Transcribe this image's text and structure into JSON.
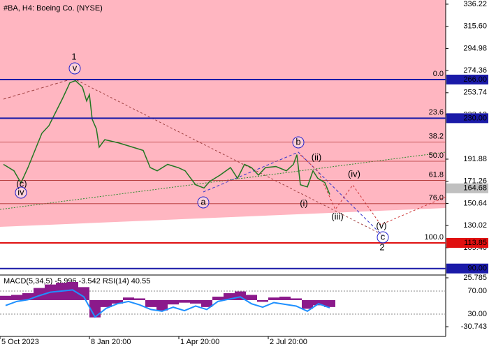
{
  "chart_data": [
    {
      "type": "line",
      "title": "#BA, H4:  Boeing Co. (NYSE)",
      "x": [
        1.25,
        5,
        7.5,
        10,
        12.5,
        15,
        17.5,
        20,
        22.5,
        25,
        27,
        29.5,
        31,
        32,
        33,
        34.5,
        35.5,
        37.5,
        42.5,
        47.5,
        51.25,
        53.75,
        56.25,
        60,
        63.75,
        66.25,
        70,
        73,
        75,
        78.75,
        82.5,
        85,
        87.5,
        90,
        92.5,
        95,
        98.75,
        102.5,
        105,
        106.25,
        107.5,
        110,
        112,
        113.75,
        116.25,
        118
      ],
      "values": [
        187,
        181,
        169.7,
        184,
        200,
        216,
        223,
        236,
        249,
        263,
        265,
        259,
        246,
        252,
        229,
        220,
        203,
        210,
        207,
        203,
        200,
        184,
        181,
        187,
        184,
        181,
        168,
        165,
        171,
        177,
        184,
        174,
        187,
        184,
        177,
        184,
        185,
        181,
        187,
        196,
        168,
        166,
        181,
        174,
        170,
        159
      ],
      "color": "#227722",
      "xlim": [
        0,
        159.5
      ],
      "xticks": [
        {
          "value": 0,
          "label": "5 Oct 2023"
        },
        {
          "value": 32,
          "label": "8 Jan 20:00"
        },
        {
          "value": 64,
          "label": "1 Apr 20:00"
        },
        {
          "value": 96,
          "label": "2 Jul 20:00"
        }
      ],
      "ylim": [
        84.6,
        340.1
      ],
      "yticks": [
        336.22,
        {
          "value": 315.6,
          "label": "315.60"
        },
        294.98,
        274.36,
        253.74,
        233.12,
        191.88,
        171.26,
        150.64,
        130.02,
        {
          "value": 109.4,
          "label": "109.40"
        }
      ],
      "levels": [
        {
          "value": 266,
          "label": "266.00",
          "color": "#1a1aa8"
        },
        {
          "value": 230,
          "label": "230.00",
          "color": "#1a1aa8"
        },
        {
          "value": 113.85,
          "label": "113.85",
          "color": "#e01010"
        },
        {
          "value": 90,
          "label": "90.00",
          "color": "#1a1aa8"
        }
      ],
      "current_price": 164.68,
      "fibonacci": [
        {
          "value": 266,
          "label": "0.0"
        },
        {
          "value": 230.1,
          "label": "23.6"
        },
        {
          "value": 207.9,
          "label": "38.2"
        },
        {
          "value": 189.9,
          "label": "50.0"
        },
        {
          "value": 172,
          "label": "61.8"
        },
        {
          "value": 150.4,
          "label": "76.0"
        },
        {
          "value": 113.85,
          "label": "100.0"
        }
      ],
      "annotations": [
        {
          "text": "1",
          "style": "plain",
          "color": "#cc2222"
        },
        {
          "text": "v",
          "style": "circle",
          "color": "#2222cc"
        },
        {
          "text": "(c)",
          "style": "plain",
          "color": "#cc2222"
        },
        {
          "text": "iv",
          "style": "circle",
          "color": "#2222cc"
        },
        {
          "text": "a",
          "style": "circle",
          "color": "#2222cc"
        },
        {
          "text": "b",
          "style": "circle",
          "color": "#2222cc"
        },
        {
          "text": "(ii)",
          "style": "plain",
          "color": "#cc2222"
        },
        {
          "text": "(i)",
          "style": "plain",
          "color": "#cc2222"
        },
        {
          "text": "(iii)",
          "style": "plain",
          "color": "#cc2222"
        },
        {
          "text": "(iv)",
          "style": "plain",
          "color": "#cc2222"
        },
        {
          "text": "(v)",
          "style": "plain",
          "color": "#cc2222"
        },
        {
          "text": "c",
          "style": "circle",
          "color": "#2222cc"
        },
        {
          "text": "2",
          "style": "plain",
          "color": "#cc2222"
        }
      ]
    },
    {
      "type": "indicator",
      "title": "MACD(5,34,5) -5.996 -3.542 RSI(14) 40.55",
      "x": [
        2,
        6,
        10,
        14,
        18,
        22,
        26,
        30,
        34,
        38,
        42,
        46,
        50,
        54,
        58,
        62,
        66,
        70,
        74,
        78,
        82,
        86,
        90,
        94,
        98,
        102,
        106,
        110,
        114,
        118
      ],
      "series": [
        {
          "type": "bar",
          "color": "#8b1a8b",
          "values": [
            5,
            6,
            8,
            14,
            18,
            20,
            21,
            15,
            -20,
            -8,
            -4,
            3,
            2,
            -8,
            -12,
            -5,
            -3,
            -4,
            -8,
            4,
            8,
            10,
            6,
            -2,
            3,
            4,
            2,
            -10,
            -6,
            -8
          ]
        },
        {
          "type": "line",
          "axis": "y2",
          "color": "#1e90ff",
          "values": [
            45,
            52,
            55,
            62,
            68,
            70,
            72,
            60,
            25,
            40,
            48,
            52,
            46,
            38,
            35,
            42,
            36,
            44,
            38,
            52,
            56,
            60,
            48,
            42,
            50,
            47,
            44,
            35,
            48,
            41
          ]
        }
      ],
      "ylim": [
        -42,
        28.2
      ],
      "yticks": [
        25.785,
        -30.743
      ],
      "y2lim": [
        -8.8,
        96.7
      ],
      "y2ticks": [
        {
          "value": 70,
          "label": "70.00"
        },
        {
          "value": 30,
          "label": "30.00"
        }
      ]
    }
  ]
}
